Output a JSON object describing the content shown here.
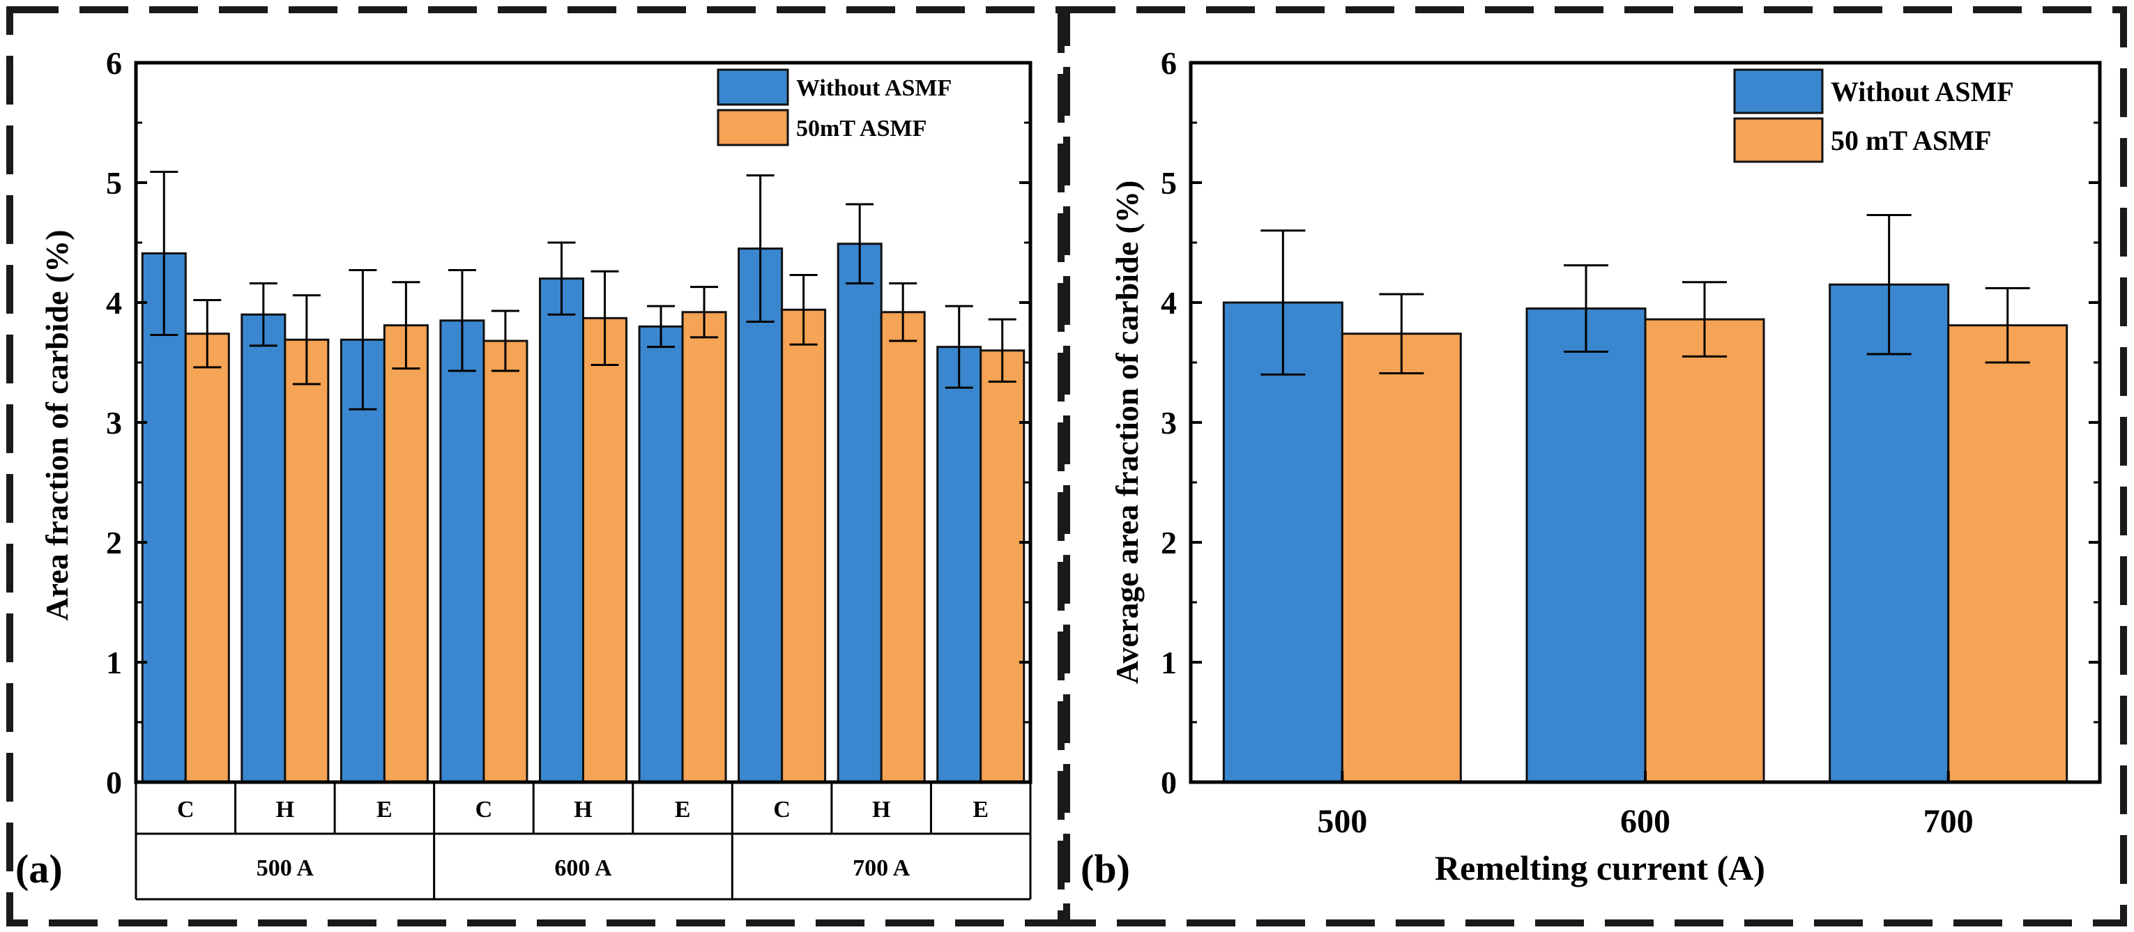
{
  "colors": {
    "without_asmf": "#3a87cf",
    "with_asmf": "#f5a354",
    "axis": "#000000"
  },
  "chart_data": [
    {
      "type": "bar",
      "panel_label": "(a)",
      "ylabel": "Area fraction of carbide (%)",
      "xlabel": "",
      "ylim": [
        0,
        6
      ],
      "yticks": [
        "0",
        "1",
        "2",
        "3",
        "4",
        "5",
        "6"
      ],
      "categories": [
        "C",
        "H",
        "E",
        "C",
        "H",
        "E",
        "C",
        "H",
        "E"
      ],
      "groups": [
        "500 A",
        "600 A",
        "700 A"
      ],
      "legend_position": "top-right",
      "series": [
        {
          "name": "Without ASMF",
          "values": [
            4.41,
            3.9,
            3.69,
            3.85,
            4.2,
            3.8,
            4.45,
            4.49,
            3.63
          ],
          "errors": [
            0.68,
            0.26,
            0.58,
            0.42,
            0.3,
            0.17,
            0.61,
            0.33,
            0.34
          ]
        },
        {
          "name": "50mT ASMF",
          "values": [
            3.74,
            3.69,
            3.81,
            3.68,
            3.87,
            3.92,
            3.94,
            3.92,
            3.6
          ],
          "errors": [
            0.28,
            0.37,
            0.36,
            0.25,
            0.39,
            0.21,
            0.29,
            0.24,
            0.26
          ]
        }
      ]
    },
    {
      "type": "bar",
      "panel_label": "(b)",
      "ylabel": "Average area fraction of carbide (%)",
      "xlabel": "Remelting current (A)",
      "ylim": [
        0,
        6
      ],
      "yticks": [
        "0",
        "1",
        "2",
        "3",
        "4",
        "5",
        "6"
      ],
      "categories": [
        "500",
        "600",
        "700"
      ],
      "legend_position": "top-right",
      "series": [
        {
          "name": "Without ASMF",
          "values": [
            4.0,
            3.95,
            4.15
          ],
          "errors": [
            0.6,
            0.36,
            0.58
          ]
        },
        {
          "name": "50 mT ASMF",
          "values": [
            3.74,
            3.86,
            3.81
          ],
          "errors": [
            0.33,
            0.31,
            0.31
          ]
        }
      ]
    }
  ]
}
